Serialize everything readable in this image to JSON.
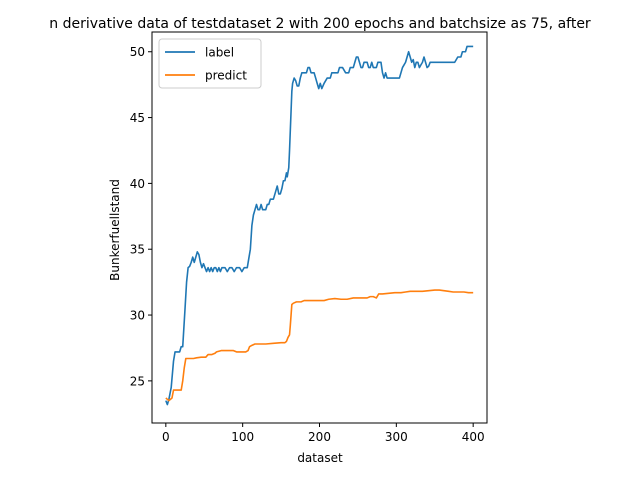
{
  "chart_data": {
    "type": "line",
    "title": "n derivative data of testdataset 2 with 200 epochs and batchsize as 75, after",
    "xlabel": "dataset",
    "ylabel": "Bunkerfuellstand",
    "xlim": [
      -18,
      418
    ],
    "ylim": [
      21.8,
      51.5
    ],
    "xticks": [
      0,
      100,
      200,
      300,
      400
    ],
    "yticks": [
      25,
      30,
      35,
      40,
      45,
      50
    ],
    "grid": false,
    "legend_position": "upper-left",
    "series": [
      {
        "name": "label",
        "color": "#1f77b4",
        "points": [
          [
            0,
            23.5
          ],
          [
            2,
            23.2
          ],
          [
            4,
            23.6
          ],
          [
            7,
            24.5
          ],
          [
            10,
            26.5
          ],
          [
            12,
            27.2
          ],
          [
            18,
            27.2
          ],
          [
            20,
            27.6
          ],
          [
            22,
            27.6
          ],
          [
            25,
            30.5
          ],
          [
            27,
            32.5
          ],
          [
            29,
            33.6
          ],
          [
            31,
            33.7
          ],
          [
            33,
            34.0
          ],
          [
            35,
            34.4
          ],
          [
            37,
            34.0
          ],
          [
            39,
            34.4
          ],
          [
            41,
            34.8
          ],
          [
            43,
            34.6
          ],
          [
            45,
            34.0
          ],
          [
            47,
            33.6
          ],
          [
            49,
            33.9
          ],
          [
            51,
            33.6
          ],
          [
            53,
            33.3
          ],
          [
            55,
            33.6
          ],
          [
            57,
            33.3
          ],
          [
            59,
            33.6
          ],
          [
            61,
            33.3
          ],
          [
            63,
            33.6
          ],
          [
            65,
            33.6
          ],
          [
            67,
            33.3
          ],
          [
            69,
            33.6
          ],
          [
            71,
            33.3
          ],
          [
            73,
            33.6
          ],
          [
            77,
            33.6
          ],
          [
            80,
            33.3
          ],
          [
            83,
            33.6
          ],
          [
            86,
            33.6
          ],
          [
            89,
            33.3
          ],
          [
            92,
            33.6
          ],
          [
            96,
            33.6
          ],
          [
            99,
            33.3
          ],
          [
            102,
            33.6
          ],
          [
            106,
            33.6
          ],
          [
            108,
            34.3
          ],
          [
            110,
            35.0
          ],
          [
            112,
            36.8
          ],
          [
            114,
            37.6
          ],
          [
            116,
            38.0
          ],
          [
            118,
            38.4
          ],
          [
            120,
            38.0
          ],
          [
            122,
            38.0
          ],
          [
            124,
            38.4
          ],
          [
            126,
            38.0
          ],
          [
            130,
            38.0
          ],
          [
            132,
            38.4
          ],
          [
            134,
            38.4
          ],
          [
            136,
            38.8
          ],
          [
            140,
            38.8
          ],
          [
            143,
            39.4
          ],
          [
            145,
            39.8
          ],
          [
            147,
            39.2
          ],
          [
            149,
            39.2
          ],
          [
            151,
            39.6
          ],
          [
            153,
            40.2
          ],
          [
            155,
            40.2
          ],
          [
            157,
            40.8
          ],
          [
            158,
            40.5
          ],
          [
            160,
            41.2
          ],
          [
            161,
            42.5
          ],
          [
            162,
            44.0
          ],
          [
            163,
            45.5
          ],
          [
            164,
            47.0
          ],
          [
            165,
            47.6
          ],
          [
            167,
            48.0
          ],
          [
            169,
            47.8
          ],
          [
            171,
            47.4
          ],
          [
            173,
            47.4
          ],
          [
            175,
            48.0
          ],
          [
            177,
            48.4
          ],
          [
            179,
            48.4
          ],
          [
            183,
            48.4
          ],
          [
            185,
            48.8
          ],
          [
            187,
            48.8
          ],
          [
            189,
            48.4
          ],
          [
            193,
            48.4
          ],
          [
            195,
            48.0
          ],
          [
            197,
            47.6
          ],
          [
            199,
            47.2
          ],
          [
            201,
            47.6
          ],
          [
            203,
            47.2
          ],
          [
            206,
            47.6
          ],
          [
            210,
            48.0
          ],
          [
            214,
            48.0
          ],
          [
            216,
            48.4
          ],
          [
            220,
            48.4
          ],
          [
            224,
            48.4
          ],
          [
            226,
            48.8
          ],
          [
            230,
            48.8
          ],
          [
            234,
            48.4
          ],
          [
            238,
            48.4
          ],
          [
            240,
            48.8
          ],
          [
            244,
            48.8
          ],
          [
            246,
            49.2
          ],
          [
            248,
            49.6
          ],
          [
            250,
            49.6
          ],
          [
            252,
            49.2
          ],
          [
            254,
            48.8
          ],
          [
            256,
            48.8
          ],
          [
            258,
            49.2
          ],
          [
            262,
            49.2
          ],
          [
            264,
            48.8
          ],
          [
            266,
            48.8
          ],
          [
            268,
            49.2
          ],
          [
            270,
            48.8
          ],
          [
            274,
            48.8
          ],
          [
            276,
            49.2
          ],
          [
            280,
            49.2
          ],
          [
            282,
            48.4
          ],
          [
            284,
            48.0
          ],
          [
            286,
            48.4
          ],
          [
            288,
            48.0
          ],
          [
            292,
            48.0
          ],
          [
            296,
            48.0
          ],
          [
            300,
            48.0
          ],
          [
            304,
            48.0
          ],
          [
            306,
            48.4
          ],
          [
            308,
            48.8
          ],
          [
            310,
            49.0
          ],
          [
            312,
            49.2
          ],
          [
            314,
            49.6
          ],
          [
            316,
            50.0
          ],
          [
            318,
            49.6
          ],
          [
            320,
            49.2
          ],
          [
            322,
            49.4
          ],
          [
            324,
            48.8
          ],
          [
            326,
            49.2
          ],
          [
            328,
            49.2
          ],
          [
            330,
            48.8
          ],
          [
            332,
            49.0
          ],
          [
            334,
            49.2
          ],
          [
            336,
            49.6
          ],
          [
            338,
            49.2
          ],
          [
            340,
            48.8
          ],
          [
            342,
            48.9
          ],
          [
            344,
            49.2
          ],
          [
            350,
            49.2
          ],
          [
            358,
            49.2
          ],
          [
            364,
            49.2
          ],
          [
            368,
            49.2
          ],
          [
            372,
            49.2
          ],
          [
            376,
            49.2
          ],
          [
            380,
            49.6
          ],
          [
            384,
            49.6
          ],
          [
            386,
            50.0
          ],
          [
            390,
            50.0
          ],
          [
            392,
            50.4
          ],
          [
            396,
            50.4
          ],
          [
            400,
            50.4
          ]
        ]
      },
      {
        "name": "predict",
        "color": "#ff7f0e",
        "points": [
          [
            0,
            23.7
          ],
          [
            2,
            23.6
          ],
          [
            4,
            23.5
          ],
          [
            8,
            23.7
          ],
          [
            10,
            24.3
          ],
          [
            13,
            24.3
          ],
          [
            18,
            24.3
          ],
          [
            20,
            24.3
          ],
          [
            22,
            25.0
          ],
          [
            24,
            26.0
          ],
          [
            26,
            26.7
          ],
          [
            30,
            26.7
          ],
          [
            36,
            26.7
          ],
          [
            40,
            26.75
          ],
          [
            46,
            26.8
          ],
          [
            52,
            26.8
          ],
          [
            55,
            27.0
          ],
          [
            60,
            27.0
          ],
          [
            64,
            27.1
          ],
          [
            66,
            27.2
          ],
          [
            72,
            27.3
          ],
          [
            80,
            27.3
          ],
          [
            88,
            27.3
          ],
          [
            92,
            27.2
          ],
          [
            98,
            27.2
          ],
          [
            104,
            27.2
          ],
          [
            107,
            27.3
          ],
          [
            109,
            27.6
          ],
          [
            112,
            27.7
          ],
          [
            116,
            27.8
          ],
          [
            122,
            27.8
          ],
          [
            130,
            27.8
          ],
          [
            140,
            27.85
          ],
          [
            150,
            27.9
          ],
          [
            155,
            27.9
          ],
          [
            157,
            28.0
          ],
          [
            159,
            28.3
          ],
          [
            161,
            28.5
          ],
          [
            162,
            29.2
          ],
          [
            163,
            30.0
          ],
          [
            164,
            30.8
          ],
          [
            166,
            30.9
          ],
          [
            170,
            31.0
          ],
          [
            176,
            31.0
          ],
          [
            180,
            31.1
          ],
          [
            186,
            31.1
          ],
          [
            194,
            31.1
          ],
          [
            200,
            31.1
          ],
          [
            206,
            31.1
          ],
          [
            212,
            31.2
          ],
          [
            220,
            31.25
          ],
          [
            228,
            31.2
          ],
          [
            236,
            31.2
          ],
          [
            244,
            31.3
          ],
          [
            250,
            31.3
          ],
          [
            256,
            31.3
          ],
          [
            262,
            31.3
          ],
          [
            266,
            31.4
          ],
          [
            270,
            31.4
          ],
          [
            274,
            31.3
          ],
          [
            277,
            31.6
          ],
          [
            282,
            31.6
          ],
          [
            290,
            31.65
          ],
          [
            298,
            31.7
          ],
          [
            306,
            31.7
          ],
          [
            312,
            31.75
          ],
          [
            318,
            31.8
          ],
          [
            326,
            31.8
          ],
          [
            334,
            31.8
          ],
          [
            342,
            31.85
          ],
          [
            350,
            31.9
          ],
          [
            356,
            31.9
          ],
          [
            362,
            31.85
          ],
          [
            368,
            31.8
          ],
          [
            374,
            31.75
          ],
          [
            380,
            31.75
          ],
          [
            388,
            31.75
          ],
          [
            394,
            31.7
          ],
          [
            400,
            31.7
          ]
        ]
      }
    ]
  }
}
